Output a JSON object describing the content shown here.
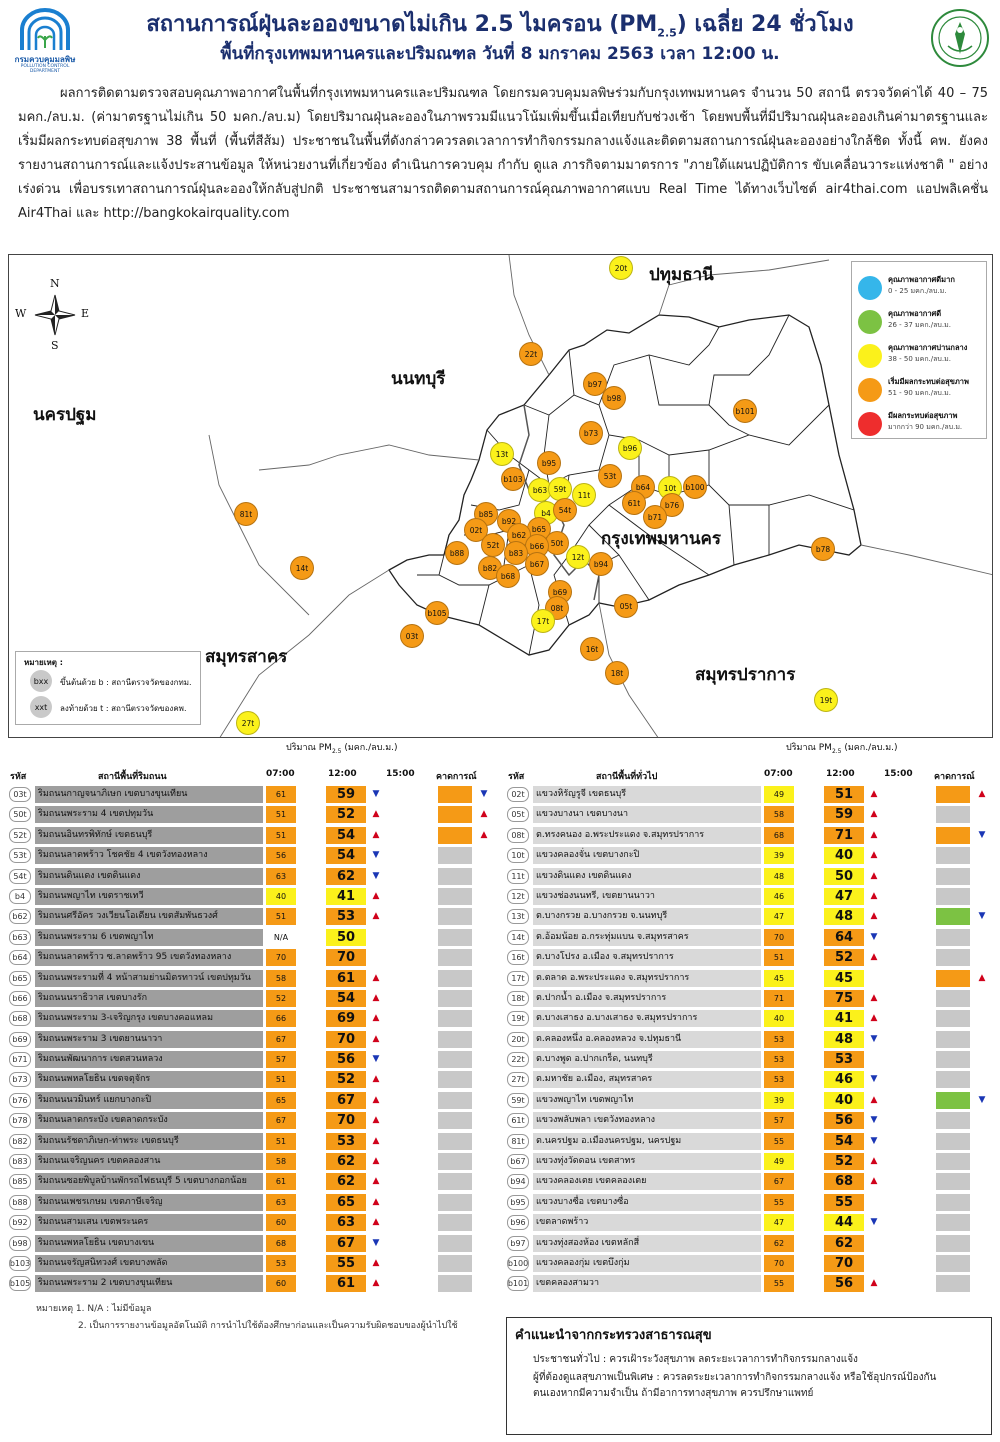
{
  "header": {
    "title_prefix": "สถานการณ์ฝุ่นละอองขนาดไม่เกิน 2.5 ไมครอน (PM",
    "title_sub": "2.5",
    "title_suffix": ") เฉลี่ย 24 ชั่วโมง",
    "subtitle": "พื้นที่กรุงเทพมหานครและปริมณฑล วันที่ 8 มกราคม 2563 เวลา 12:00 น.",
    "logo_text": "กรมควบคุมมลพิษ",
    "logo_subtext": "POLLUTION CONTROL DEPARTMENT"
  },
  "intro": "ผลการติดตามตรวจสอบคุณภาพอากาศในพื้นที่กรุงเทพมหานครและปริมณฑล โดยกรมควบคุมมลพิษร่วมกับกรุงเทพมหานคร จำนวน  50 สถานี ตรวจวัดค่าได้ 40 – 75 มคก./ลบ.ม. (ค่ามาตรฐานไม่เกิน 50 มคก./ลบ.ม) โดยปริมาณฝุ่นละอองในภาพรวมมีแนวโน้มเพิ่มขึ้นเมื่อเทียบกับช่วงเช้า โดยพบพื้นที่มีปริมาณฝุ่นละอองเกินค่ามาตรฐานและเริ่มมีผลกระทบต่อสุขภาพ 38  พื้นที่ (พื้นที่สีส้ม) ประชาชนในพื้นที่ดังกล่าวควรลดเวลาการทำกิจกรรมกลางแจ้งและติดตามสถานการณ์ฝุ่นละอองอย่างใกล้ชิด ทั้งนี้ คพ. ยังคงรายงานสถานการณ์และแจ้งประสานข้อมูล ให้หน่วยงานที่เกี่ยวข้อง ดำเนินการควบคุม กำกับ ดูแล ภารกิจตามมาตรการ \"ภายใต้แผนปฏิบัติการ ขับเคลื่อนวาระแห่งชาติ \" อย่างเร่งด่วน เพื่อบรรเทาสถานการณ์ฝุ่นละอองให้กลับสู่ปกติ ประชาชนสามารถติดตามสถานการณ์คุณภาพอากาศแบบ Real Time ได้ทางเว็บไซต์  air4thai.com  แอปพลิเคชั่น Air4Thai และ http://bangkokairquality.com",
  "map": {
    "compass": {
      "n": "N",
      "s": "S",
      "e": "E",
      "w": "W"
    },
    "provinces": [
      {
        "id": "pathumthani",
        "label": "ปทุมธานี"
      },
      {
        "id": "nonthaburi",
        "label": "นนทบุรี"
      },
      {
        "id": "nakhonpathom",
        "label": "นครปฐม"
      },
      {
        "id": "bangkok",
        "label": "กรุงเทพมหานคร"
      },
      {
        "id": "samutsakhon",
        "label": "สมุทรสาคร"
      },
      {
        "id": "samutprakan",
        "label": "สมุทรปราการ"
      }
    ],
    "legend": [
      {
        "title": "คุณภาพอากาศดีมาก",
        "range": "0 - 25 มคก./ลบ.ม.",
        "color": "#35b6ea"
      },
      {
        "title": "คุณภาพอากาศดี",
        "range": "26 - 37 มคก./ลบ.ม.",
        "color": "#7cc243"
      },
      {
        "title": "คุณภาพอากาศปานกลาง",
        "range": "38 - 50 มคก./ลบ.ม.",
        "color": "#fbf11b"
      },
      {
        "title": "เริ่มมีผลกระทบต่อสุขภาพ",
        "range": "51 - 90 มคก./ลบ.ม.",
        "color": "#f59a16"
      },
      {
        "title": "มีผลกระทบต่อสุขภาพ",
        "range": "มากกว่า 90 มคก./ลบ.ม.",
        "color": "#ee2d2d"
      }
    ],
    "note": {
      "title": "หมายเหตุ :",
      "b_code": "bxx",
      "b_text": "ขึ้นต้นด้วย b : สถานีตรวจวัดของกทม.",
      "t_code": "xxt",
      "t_text": "ลงท้ายด้วย t : สถานีตรวจวัดของคพ."
    },
    "stations": [
      {
        "code": "20t",
        "level": "yellow"
      },
      {
        "code": "22t",
        "level": "orange"
      },
      {
        "code": "b97",
        "level": "orange"
      },
      {
        "code": "b98",
        "level": "orange"
      },
      {
        "code": "b101",
        "level": "orange"
      },
      {
        "code": "b73",
        "level": "orange"
      },
      {
        "code": "13t",
        "level": "yellow"
      },
      {
        "code": "b96",
        "level": "yellow"
      },
      {
        "code": "b95",
        "level": "orange"
      },
      {
        "code": "b103",
        "level": "orange"
      },
      {
        "code": "53t",
        "level": "orange"
      },
      {
        "code": "b63",
        "level": "yellow"
      },
      {
        "code": "59t",
        "level": "yellow"
      },
      {
        "code": "11t",
        "level": "yellow"
      },
      {
        "code": "b64",
        "level": "orange"
      },
      {
        "code": "10t",
        "level": "yellow"
      },
      {
        "code": "b100",
        "level": "orange"
      },
      {
        "code": "61t",
        "level": "orange"
      },
      {
        "code": "b76",
        "level": "orange"
      },
      {
        "code": "b71",
        "level": "orange"
      },
      {
        "code": "81t",
        "level": "orange"
      },
      {
        "code": "b85",
        "level": "orange"
      },
      {
        "code": "b4",
        "level": "yellow"
      },
      {
        "code": "54t",
        "level": "orange"
      },
      {
        "code": "b92",
        "level": "orange"
      },
      {
        "code": "02t",
        "level": "orange"
      },
      {
        "code": "b65",
        "level": "orange"
      },
      {
        "code": "b62",
        "level": "orange"
      },
      {
        "code": "50t",
        "level": "orange"
      },
      {
        "code": "52t",
        "level": "orange"
      },
      {
        "code": "b66",
        "level": "orange"
      },
      {
        "code": "b88",
        "level": "orange"
      },
      {
        "code": "b83",
        "level": "orange"
      },
      {
        "code": "12t",
        "level": "yellow"
      },
      {
        "code": "b78",
        "level": "orange"
      },
      {
        "code": "b67",
        "level": "orange"
      },
      {
        "code": "b94",
        "level": "orange"
      },
      {
        "code": "14t",
        "level": "orange"
      },
      {
        "code": "b82",
        "level": "orange"
      },
      {
        "code": "b68",
        "level": "orange"
      },
      {
        "code": "b69",
        "level": "orange"
      },
      {
        "code": "b105",
        "level": "orange"
      },
      {
        "code": "08t",
        "level": "orange"
      },
      {
        "code": "05t",
        "level": "orange"
      },
      {
        "code": "17t",
        "level": "yellow"
      },
      {
        "code": "03t",
        "level": "orange"
      },
      {
        "code": "16t",
        "level": "orange"
      },
      {
        "code": "18t",
        "level": "orange"
      },
      {
        "code": "19t",
        "level": "yellow"
      },
      {
        "code": "27t",
        "level": "yellow"
      }
    ]
  },
  "unit_label_prefix": "ปริมาณ PM",
  "unit_label_sub": "2.5",
  "unit_label_suffix": " (มคก./ลบ.ม.)",
  "table_headers": {
    "code": "รหัส",
    "left_station": "สถานีพื้นที่ริมถนน",
    "right_station": "สถานีพื้นที่ทั่วไป",
    "t07": "07:00",
    "t12": "12:00",
    "t15": "15:00",
    "forecast": "คาดการณ์"
  },
  "left_rows": [
    {
      "code": "03t",
      "name": "ริมถนนกาญจนาภิเษก เขตบางขุนเทียน",
      "v07": "61",
      "c07": "orange",
      "v12": "59",
      "c12": "orange",
      "trend": "down",
      "fc": "orange",
      "fctrend": "down"
    },
    {
      "code": "50t",
      "name": "ริมถนนพระราม 4 เขตปทุมวัน",
      "v07": "51",
      "c07": "orange",
      "v12": "52",
      "c12": "orange",
      "trend": "up",
      "fc": "orange",
      "fctrend": "up"
    },
    {
      "code": "52t",
      "name": "ริมถนนอินทรพิทักษ์ เขตธนบุรี",
      "v07": "51",
      "c07": "orange",
      "v12": "54",
      "c12": "orange",
      "trend": "up",
      "fc": "orange",
      "fctrend": "up"
    },
    {
      "code": "53t",
      "name": "ริมถนนลาดพร้าว โชคชัย 4 เขตวังทองหลาง",
      "v07": "56",
      "c07": "orange",
      "v12": "54",
      "c12": "orange",
      "trend": "down",
      "fc": "gray",
      "fctrend": ""
    },
    {
      "code": "54t",
      "name": "ริมถนนดินแดง เขตดินแดง",
      "v07": "63",
      "c07": "orange",
      "v12": "62",
      "c12": "orange",
      "trend": "down",
      "fc": "gray",
      "fctrend": ""
    },
    {
      "code": "b4",
      "name": "ริมถนนพญาไท เขตราชเทวี",
      "v07": "40",
      "c07": "yellow",
      "v12": "41",
      "c12": "yellow",
      "trend": "up",
      "fc": "gray",
      "fctrend": ""
    },
    {
      "code": "b62",
      "name": "ริมถนนศรีอัคร วงเวียนโอเดียน เขตสัมพันธวงศ์",
      "v07": "51",
      "c07": "orange",
      "v12": "53",
      "c12": "orange",
      "trend": "up",
      "fc": "gray",
      "fctrend": ""
    },
    {
      "code": "b63",
      "name": "ริมถนนพระราม 6 เขตพญาไท",
      "v07": "N/A",
      "c07": "none",
      "v12": "50",
      "c12": "yellow",
      "trend": "",
      "fc": "gray",
      "fctrend": ""
    },
    {
      "code": "b64",
      "name": "ริมถนนลาดพร้าว ซ.ลาดพร้าว 95 เขตวังทองหลาง",
      "v07": "70",
      "c07": "orange",
      "v12": "70",
      "c12": "orange",
      "trend": "",
      "fc": "gray",
      "fctrend": ""
    },
    {
      "code": "b65",
      "name": "ริมถนนพระรามที่ 4 หน้าสามย่านมิตรทาวน์ เขตปทุมวัน",
      "v07": "58",
      "c07": "orange",
      "v12": "61",
      "c12": "orange",
      "trend": "up",
      "fc": "gray",
      "fctrend": ""
    },
    {
      "code": "b66",
      "name": "ริมถนนนราธิวาส เขตบางรัก",
      "v07": "52",
      "c07": "orange",
      "v12": "54",
      "c12": "orange",
      "trend": "up",
      "fc": "gray",
      "fctrend": ""
    },
    {
      "code": "b68",
      "name": "ริมถนนพระราม 3-เจริญกรุง เขตบางคอแหลม",
      "v07": "66",
      "c07": "orange",
      "v12": "69",
      "c12": "orange",
      "trend": "up",
      "fc": "gray",
      "fctrend": ""
    },
    {
      "code": "b69",
      "name": "ริมถนนพระราม 3 เขตยานนาวา",
      "v07": "67",
      "c07": "orange",
      "v12": "70",
      "c12": "orange",
      "trend": "up",
      "fc": "gray",
      "fctrend": ""
    },
    {
      "code": "b71",
      "name": "ริมถนนพัฒนาการ เขตสวนหลวง",
      "v07": "57",
      "c07": "orange",
      "v12": "56",
      "c12": "orange",
      "trend": "down",
      "fc": "gray",
      "fctrend": ""
    },
    {
      "code": "b73",
      "name": "ริมถนนพหลโยธิน เขตจตุจักร",
      "v07": "51",
      "c07": "orange",
      "v12": "52",
      "c12": "orange",
      "trend": "up",
      "fc": "gray",
      "fctrend": ""
    },
    {
      "code": "b76",
      "name": "ริมถนนนวมินทร์ แยกบางกะปิ",
      "v07": "65",
      "c07": "orange",
      "v12": "67",
      "c12": "orange",
      "trend": "up",
      "fc": "gray",
      "fctrend": ""
    },
    {
      "code": "b78",
      "name": "ริมถนนลาดกระบัง เขตลาดกระบัง",
      "v07": "67",
      "c07": "orange",
      "v12": "70",
      "c12": "orange",
      "trend": "up",
      "fc": "gray",
      "fctrend": ""
    },
    {
      "code": "b82",
      "name": "ริมถนนรัชดาภิเษก-ท่าพระ เขตธนบุรี",
      "v07": "51",
      "c07": "orange",
      "v12": "53",
      "c12": "orange",
      "trend": "up",
      "fc": "gray",
      "fctrend": ""
    },
    {
      "code": "b83",
      "name": "ริมถนนเจริญนคร เขตคลองสาน",
      "v07": "58",
      "c07": "orange",
      "v12": "62",
      "c12": "orange",
      "trend": "up",
      "fc": "gray",
      "fctrend": ""
    },
    {
      "code": "b85",
      "name": "ริมถนนซอยพิบูลบ้านพักรถไฟธนบุรี 5 เขตบางกอกน้อย",
      "v07": "61",
      "c07": "orange",
      "v12": "62",
      "c12": "orange",
      "trend": "up",
      "fc": "gray",
      "fctrend": ""
    },
    {
      "code": "b88",
      "name": "ริมถนนเพชรเกษม เขตภาษีเจริญ",
      "v07": "63",
      "c07": "orange",
      "v12": "65",
      "c12": "orange",
      "trend": "up",
      "fc": "gray",
      "fctrend": ""
    },
    {
      "code": "b92",
      "name": "ริมถนนสามเสน เขตพระนคร",
      "v07": "60",
      "c07": "orange",
      "v12": "63",
      "c12": "orange",
      "trend": "up",
      "fc": "gray",
      "fctrend": ""
    },
    {
      "code": "b98",
      "name": "ริมถนนพหลโยธิน เขตบางเขน",
      "v07": "68",
      "c07": "orange",
      "v12": "67",
      "c12": "orange",
      "trend": "down",
      "fc": "gray",
      "fctrend": ""
    },
    {
      "code": "b103",
      "name": "ริมถนนจรัญสนิทวงศ์ เขตบางพลัด",
      "v07": "53",
      "c07": "orange",
      "v12": "55",
      "c12": "orange",
      "trend": "up",
      "fc": "gray",
      "fctrend": ""
    },
    {
      "code": "b105",
      "name": "ริมถนนพระราม 2 เขตบางขุนเทียน",
      "v07": "60",
      "c07": "orange",
      "v12": "61",
      "c12": "orange",
      "trend": "up",
      "fc": "gray",
      "fctrend": ""
    }
  ],
  "right_rows": [
    {
      "code": "02t",
      "name": "แขวงหิรัญรูจี เขตธนบุรี",
      "v07": "49",
      "c07": "yellow",
      "v12": "51",
      "c12": "orange",
      "trend": "up",
      "fc": "orange",
      "fctrend": "up"
    },
    {
      "code": "05t",
      "name": "แขวงบางนา เขตบางนา",
      "v07": "58",
      "c07": "orange",
      "v12": "59",
      "c12": "orange",
      "trend": "up",
      "fc": "gray",
      "fctrend": ""
    },
    {
      "code": "08t",
      "name": "ต.ทรงคนอง อ.พระประแดง จ.สมุทรปราการ",
      "v07": "68",
      "c07": "orange",
      "v12": "71",
      "c12": "orange",
      "trend": "up",
      "fc": "orange",
      "fctrend": "down"
    },
    {
      "code": "10t",
      "name": "แขวงคลองจั่น เขตบางกะปิ",
      "v07": "39",
      "c07": "yellow",
      "v12": "40",
      "c12": "yellow",
      "trend": "up",
      "fc": "gray",
      "fctrend": ""
    },
    {
      "code": "11t",
      "name": "แขวงดินแดง เขตดินแดง",
      "v07": "48",
      "c07": "yellow",
      "v12": "50",
      "c12": "yellow",
      "trend": "up",
      "fc": "gray",
      "fctrend": ""
    },
    {
      "code": "12t",
      "name": "แขวงช่องนนทรี, เขตยานนาวา",
      "v07": "46",
      "c07": "yellow",
      "v12": "47",
      "c12": "yellow",
      "trend": "up",
      "fc": "gray",
      "fctrend": ""
    },
    {
      "code": "13t",
      "name": "ต.บางกรวย อ.บางกรวย จ.นนทบุรี",
      "v07": "47",
      "c07": "yellow",
      "v12": "48",
      "c12": "yellow",
      "trend": "up",
      "fc": "green",
      "fctrend": "down"
    },
    {
      "code": "14t",
      "name": "ต.อ้อมน้อย อ.กระทุ่มแบน จ.สมุทรสาคร",
      "v07": "70",
      "c07": "orange",
      "v12": "64",
      "c12": "orange",
      "trend": "down",
      "fc": "gray",
      "fctrend": ""
    },
    {
      "code": "16t",
      "name": "ต.บางโปรง อ.เมือง จ.สมุทรปราการ",
      "v07": "51",
      "c07": "orange",
      "v12": "52",
      "c12": "orange",
      "trend": "up",
      "fc": "gray",
      "fctrend": ""
    },
    {
      "code": "17t",
      "name": "ต.ตลาด อ.พระประแดง จ.สมุทรปราการ",
      "v07": "45",
      "c07": "yellow",
      "v12": "45",
      "c12": "yellow",
      "trend": "",
      "fc": "orange",
      "fctrend": "up"
    },
    {
      "code": "18t",
      "name": "ต.ปากน้ำ อ.เมือง จ.สมุทรปราการ",
      "v07": "71",
      "c07": "orange",
      "v12": "75",
      "c12": "orange",
      "trend": "up",
      "fc": "gray",
      "fctrend": ""
    },
    {
      "code": "19t",
      "name": "ต.บางเสาธง อ.บางเสาธง จ.สมุทรปราการ",
      "v07": "40",
      "c07": "yellow",
      "v12": "41",
      "c12": "yellow",
      "trend": "up",
      "fc": "gray",
      "fctrend": ""
    },
    {
      "code": "20t",
      "name": "ต.คลองหนึ่ง อ.คลองหลวง จ.ปทุมธานี",
      "v07": "53",
      "c07": "orange",
      "v12": "48",
      "c12": "yellow",
      "trend": "down",
      "fc": "gray",
      "fctrend": ""
    },
    {
      "code": "22t",
      "name": "ต.บางพูด อ.ปากเกร็ด, นนทบุรี",
      "v07": "53",
      "c07": "orange",
      "v12": "53",
      "c12": "orange",
      "trend": "",
      "fc": "gray",
      "fctrend": ""
    },
    {
      "code": "27t",
      "name": "ต.มหาชัย อ.เมือง, สมุทรสาคร",
      "v07": "53",
      "c07": "orange",
      "v12": "46",
      "c12": "yellow",
      "trend": "down",
      "fc": "gray",
      "fctrend": ""
    },
    {
      "code": "59t",
      "name": "แขวงพญาไท เขตพญาไท",
      "v07": "39",
      "c07": "yellow",
      "v12": "40",
      "c12": "yellow",
      "trend": "up",
      "fc": "green",
      "fctrend": "down"
    },
    {
      "code": "61t",
      "name": "แขวงพลับพลา เขตวังทองหลาง",
      "v07": "57",
      "c07": "orange",
      "v12": "56",
      "c12": "orange",
      "trend": "down",
      "fc": "gray",
      "fctrend": ""
    },
    {
      "code": "81t",
      "name": "ต.นครปฐม อ.เมืองนครปฐม, นครปฐม",
      "v07": "55",
      "c07": "orange",
      "v12": "54",
      "c12": "orange",
      "trend": "down",
      "fc": "gray",
      "fctrend": ""
    },
    {
      "code": "b67",
      "name": "แขวงทุ่งวัดดอน เขตสาทร",
      "v07": "49",
      "c07": "yellow",
      "v12": "52",
      "c12": "orange",
      "trend": "up",
      "fc": "gray",
      "fctrend": ""
    },
    {
      "code": "b94",
      "name": "แขวงคลองเตย เขตคลองเตย",
      "v07": "67",
      "c07": "orange",
      "v12": "68",
      "c12": "orange",
      "trend": "up",
      "fc": "gray",
      "fctrend": ""
    },
    {
      "code": "b95",
      "name": "แขวงบางซื่อ เขตบางซื่อ",
      "v07": "55",
      "c07": "orange",
      "v12": "55",
      "c12": "orange",
      "trend": "",
      "fc": "gray",
      "fctrend": ""
    },
    {
      "code": "b96",
      "name": "เขตลาดพร้าว",
      "v07": "47",
      "c07": "yellow",
      "v12": "44",
      "c12": "yellow",
      "trend": "down",
      "fc": "gray",
      "fctrend": ""
    },
    {
      "code": "b97",
      "name": "แขวงทุ่งสองห้อง เขตหลักสี่",
      "v07": "62",
      "c07": "orange",
      "v12": "62",
      "c12": "orange",
      "trend": "",
      "fc": "gray",
      "fctrend": ""
    },
    {
      "code": "b100",
      "name": "แขวงคลองกุ่ม เขตบึงกุ่ม",
      "v07": "70",
      "c07": "orange",
      "v12": "70",
      "c12": "orange",
      "trend": "",
      "fc": "gray",
      "fctrend": ""
    },
    {
      "code": "b101",
      "name": "เขตคลองสามวา",
      "v07": "55",
      "c07": "orange",
      "v12": "56",
      "c12": "orange",
      "trend": "up",
      "fc": "gray",
      "fctrend": ""
    }
  ],
  "footnotes": {
    "n1": "หมายเหตุ 1. N/A : ไม่มีข้อมูล",
    "n2": "2. เป็นการรายงานข้อมูลอัตโนมัติ การนำไปใช้ต้องศึกษาก่อนและเป็นความรับผิดชอบของผู้นำไปใช้"
  },
  "advice": {
    "title": "คำแนะนำจากกระทรวงสาธารณสุข",
    "line1": "ประชาชนทั่วไป : ควรเฝ้าระวังสุขภาพ ลดระยะเวลาการทำกิจกรรมกลางแจ้ง",
    "line2": "ผู้ที่ต้องดูแลสุขภาพเป็นพิเศษ : ควรลดระยะเวลาการทำกิจกรรมกลางแจ้ง หรือใช้อุปกรณ์ป้องกัน",
    "line3": "ตนเองหากมีความจำเป็น ถ้ามีอาการทางสุขภาพ ควรปรึกษาแพทย์"
  },
  "colors": {
    "orange": "#f59a16",
    "yellow": "#fbf11b",
    "green": "#7cc243",
    "gray": "#c8c8c8",
    "header": "#1b2f6e"
  }
}
